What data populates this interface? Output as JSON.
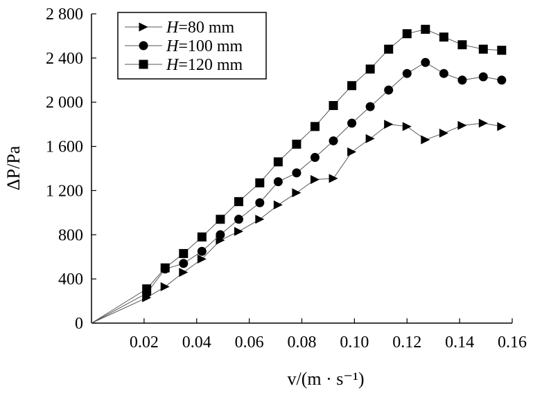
{
  "chart_data": {
    "type": "line",
    "title": "",
    "xlabel": "v/(m · s⁻¹)",
    "ylabel": "ΔP/Pa",
    "xlim": [
      0,
      0.16
    ],
    "ylim": [
      0,
      2800
    ],
    "x_ticks": [
      0.02,
      0.04,
      0.06,
      0.08,
      0.1,
      0.12,
      0.14,
      0.16
    ],
    "x_tick_labels": [
      "0.02",
      "0.04",
      "0.06",
      "0.08",
      "0.10",
      "0.12",
      "0.14",
      "0.16"
    ],
    "y_ticks": [
      0,
      400,
      800,
      1200,
      1600,
      2000,
      2400,
      2800
    ],
    "y_tick_labels": [
      "0",
      "400",
      "800",
      "1 200",
      "1 600",
      "2 000",
      "2 400",
      "2 800"
    ],
    "grid": false,
    "legend_position": "top-left",
    "series": [
      {
        "name": "H=80 mm",
        "legend": {
          "var": "H",
          "rest": "=80 mm"
        },
        "marker": "triangle-right",
        "x": [
          0,
          0.021,
          0.028,
          0.035,
          0.042,
          0.049,
          0.056,
          0.064,
          0.071,
          0.078,
          0.085,
          0.092,
          0.099,
          0.106,
          0.113,
          0.12,
          0.127,
          0.134,
          0.141,
          0.149,
          0.156
        ],
        "y": [
          0,
          230,
          330,
          460,
          580,
          750,
          830,
          940,
          1070,
          1180,
          1300,
          1310,
          1550,
          1670,
          1800,
          1780,
          1660,
          1720,
          1790,
          1810,
          1780
        ]
      },
      {
        "name": "H=100 mm",
        "legend": {
          "var": "H",
          "rest": "=100 mm"
        },
        "marker": "circle",
        "x": [
          0,
          0.021,
          0.028,
          0.035,
          0.042,
          0.049,
          0.056,
          0.064,
          0.071,
          0.078,
          0.085,
          0.092,
          0.099,
          0.106,
          0.113,
          0.12,
          0.127,
          0.134,
          0.141,
          0.149,
          0.156
        ],
        "y": [
          0,
          270,
          490,
          540,
          650,
          800,
          940,
          1090,
          1280,
          1360,
          1500,
          1650,
          1810,
          1960,
          2110,
          2260,
          2360,
          2260,
          2200,
          2230,
          2200
        ]
      },
      {
        "name": "H=120 mm",
        "legend": {
          "var": "H",
          "rest": "=120 mm"
        },
        "marker": "square",
        "x": [
          0,
          0.021,
          0.028,
          0.035,
          0.042,
          0.049,
          0.056,
          0.064,
          0.071,
          0.078,
          0.085,
          0.092,
          0.099,
          0.106,
          0.113,
          0.12,
          0.127,
          0.134,
          0.141,
          0.149,
          0.156
        ],
        "y": [
          0,
          310,
          500,
          630,
          780,
          940,
          1100,
          1270,
          1460,
          1620,
          1780,
          1970,
          2150,
          2300,
          2480,
          2620,
          2660,
          2590,
          2520,
          2480,
          2470
        ]
      }
    ]
  }
}
